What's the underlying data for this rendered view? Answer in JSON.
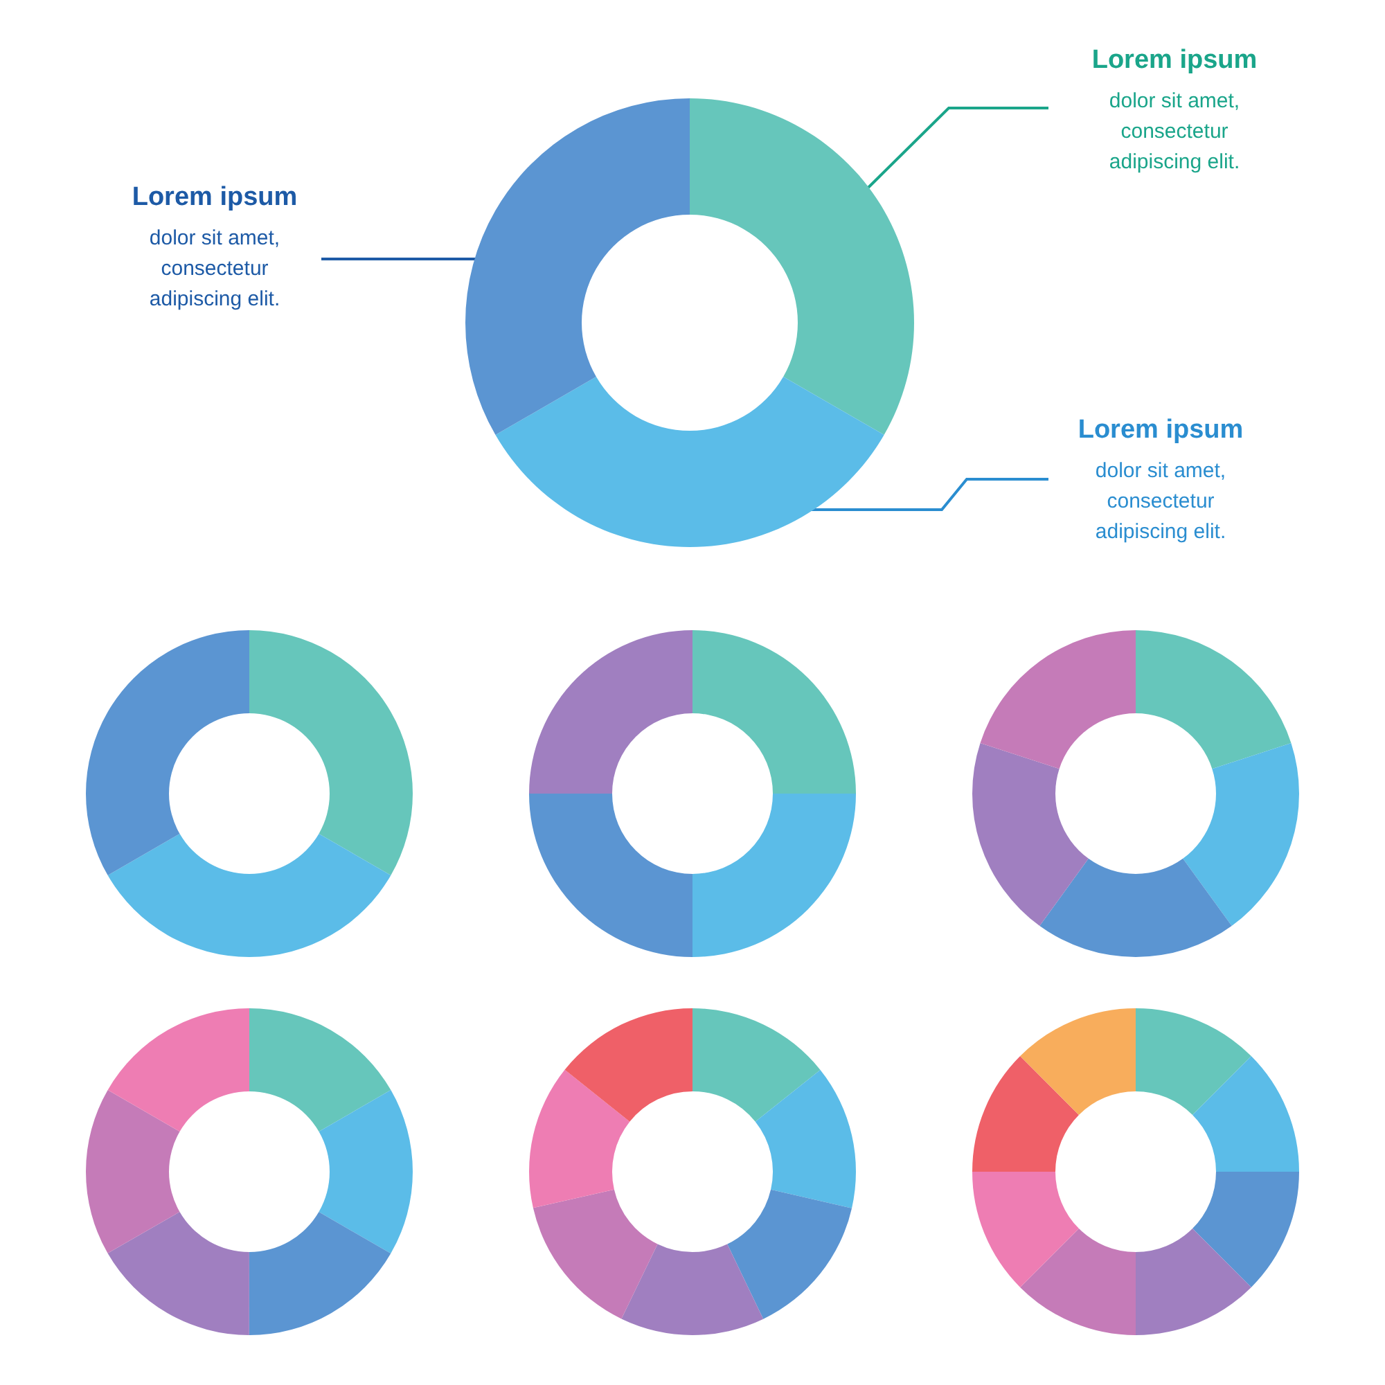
{
  "chart_data": [
    {
      "type": "donut",
      "categories": [
        null,
        null,
        null
      ],
      "values": [
        33.33,
        33.33,
        33.34
      ],
      "colors": [
        "#66c6bb",
        "#5bbce8",
        "#5b95d2"
      ],
      "annotations": [
        "Lorem ipsum",
        "dolor sit amet,\nconsectetur\nadipiscing elit.",
        "Lorem ipsum",
        "dolor sit amet,\nconsectetur\nadipiscing elit.",
        "Lorem ipsum",
        "dolor sit amet,\nconsectetur\nadipiscing elit."
      ]
    },
    {
      "type": "donut",
      "categories": [
        null,
        null,
        null
      ],
      "values": [
        33.33,
        33.33,
        33.34
      ],
      "colors": [
        "#66c6bb",
        "#5bbce8",
        "#5b95d2"
      ]
    },
    {
      "type": "donut",
      "categories": [
        null,
        null,
        null,
        null
      ],
      "values": [
        25,
        25,
        25,
        25
      ],
      "colors": [
        "#66c6bb",
        "#5bbce8",
        "#5b95d2",
        "#a07fc0"
      ]
    },
    {
      "type": "donut",
      "categories": [
        null,
        null,
        null,
        null,
        null
      ],
      "values": [
        20,
        20,
        20,
        20,
        20
      ],
      "colors": [
        "#66c6bb",
        "#5bbce8",
        "#5b95d2",
        "#a07fc0",
        "#c57bb8"
      ]
    },
    {
      "type": "donut",
      "categories": [
        null,
        null,
        null,
        null,
        null,
        null
      ],
      "values": [
        16.67,
        16.67,
        16.67,
        16.67,
        16.66,
        16.66
      ],
      "colors": [
        "#66c6bb",
        "#5bbce8",
        "#5b95d2",
        "#a07fc0",
        "#c57bb8",
        "#ee7db3"
      ]
    },
    {
      "type": "donut",
      "categories": [
        null,
        null,
        null,
        null,
        null,
        null,
        null
      ],
      "values": [
        14.29,
        14.29,
        14.29,
        14.29,
        14.28,
        14.28,
        14.28
      ],
      "colors": [
        "#66c6bb",
        "#5bbce8",
        "#5b95d2",
        "#a07fc0",
        "#c57bb8",
        "#ee7db3",
        "#ef6068"
      ]
    },
    {
      "type": "donut",
      "categories": [
        null,
        null,
        null,
        null,
        null,
        null,
        null,
        null
      ],
      "values": [
        12.5,
        12.5,
        12.5,
        12.5,
        12.5,
        12.5,
        12.5,
        12.5
      ],
      "colors": [
        "#66c6bb",
        "#5bbce8",
        "#5b95d2",
        "#a07fc0",
        "#c57bb8",
        "#ee7db3",
        "#ef6068",
        "#f8ad5c"
      ]
    }
  ]
}
